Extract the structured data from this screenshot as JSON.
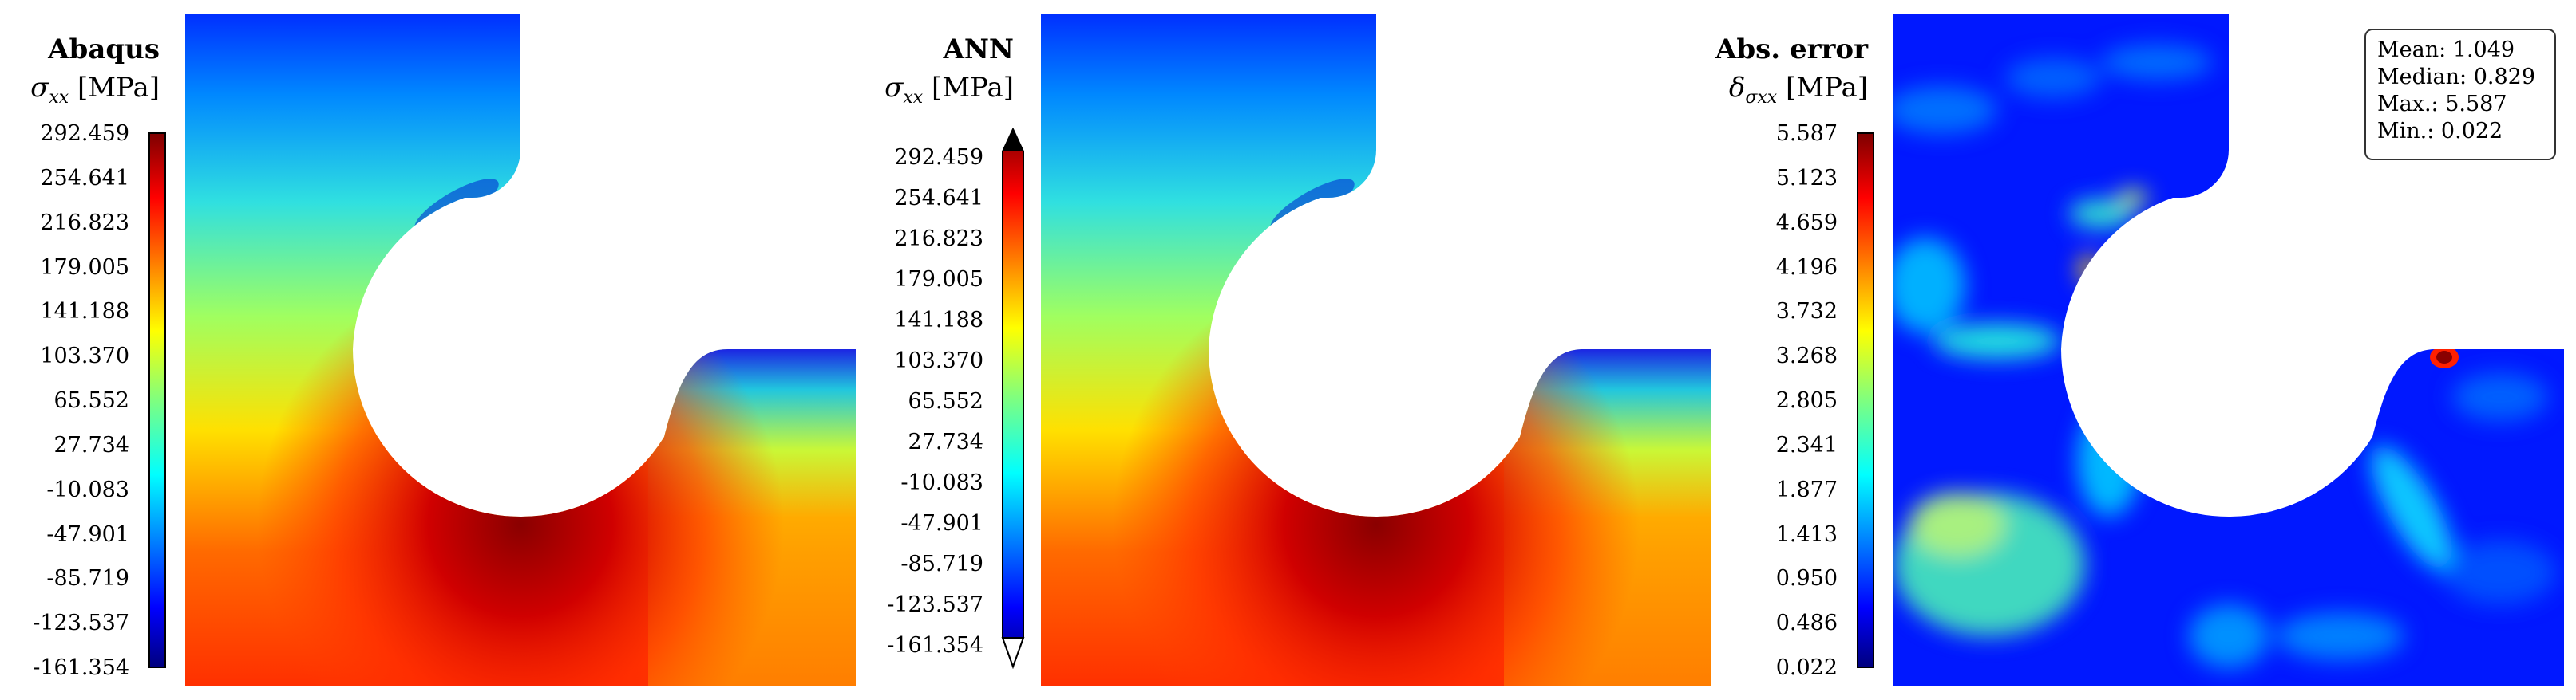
{
  "panels": [
    {
      "title": "Abaqus",
      "subtitle_var": "σ",
      "subtitle_sub": "xx",
      "subtitle_unit": " [MPa]"
    },
    {
      "title": "ANN",
      "subtitle_var": "σ",
      "subtitle_sub": "xx",
      "subtitle_unit": " [MPa]"
    },
    {
      "title": "Abs. error",
      "subtitle_var": "δ",
      "subtitle_sub": "σxx",
      "subtitle_unit": " [MPa]"
    }
  ],
  "stats": {
    "mean": "Mean: 1.049",
    "median": "Median: 0.829",
    "max": "Max.: 5.587",
    "min": "Min.: 0.022"
  },
  "colors": {
    "jet": [
      "#00007f",
      "#0000ff",
      "#007fff",
      "#00ffff",
      "#7fff7f",
      "#ffff00",
      "#ff7f00",
      "#ff0000",
      "#7f0000"
    ]
  },
  "chart_data": [
    {
      "type": "heatmap",
      "title": "Abaqus",
      "colorbar_label": "σxx [MPa]",
      "colormap": "jet",
      "ticks": [
        "292.459",
        "254.641",
        "216.823",
        "179.005",
        "141.188",
        "103.370",
        "65.552",
        "27.734",
        "-10.083",
        "-47.901",
        "-85.719",
        "-123.537",
        "-161.354"
      ],
      "range": [
        -161.354,
        292.459
      ]
    },
    {
      "type": "heatmap",
      "title": "ANN",
      "colorbar_label": "σxx [MPa]",
      "colormap": "jet",
      "colorbar_extend": "both",
      "ticks": [
        "292.459",
        "254.641",
        "216.823",
        "179.005",
        "141.188",
        "103.370",
        "65.552",
        "27.734",
        "-10.083",
        "-47.901",
        "-85.719",
        "-123.537",
        "-161.354"
      ],
      "range": [
        -161.354,
        292.459
      ]
    },
    {
      "type": "heatmap",
      "title": "Abs. error",
      "colorbar_label": "δσxx [MPa]",
      "colormap": "jet",
      "ticks": [
        "5.587",
        "5.123",
        "4.659",
        "4.196",
        "3.732",
        "3.268",
        "2.805",
        "2.341",
        "1.877",
        "1.413",
        "0.950",
        "0.486",
        "0.022"
      ],
      "range": [
        0.022,
        5.587
      ],
      "stats": {
        "mean": 1.049,
        "median": 0.829,
        "max": 5.587,
        "min": 0.022
      }
    }
  ]
}
